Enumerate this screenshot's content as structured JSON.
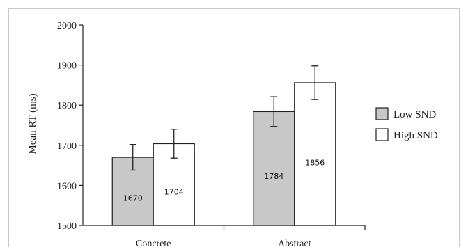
{
  "chart_data": {
    "type": "bar",
    "categories": [
      "Concrete",
      "Abstract"
    ],
    "series": [
      {
        "name": "Low SND",
        "values": [
          1670,
          1784
        ],
        "errors": [
          32,
          37
        ],
        "color": "#c8c8c8"
      },
      {
        "name": "High SND",
        "values": [
          1704,
          1856
        ],
        "errors": [
          36,
          42
        ],
        "color": "#ffffff"
      }
    ],
    "data_labels": [
      [
        "1670",
        "1784"
      ],
      [
        "1704",
        "1856"
      ]
    ],
    "ylabel": "Mean RT (ms)",
    "xlabel": "",
    "ylim": [
      1500,
      2000
    ],
    "yticks": [
      1500,
      1600,
      1700,
      1800,
      1900,
      2000
    ],
    "ytick_labels": [
      "1500",
      "1600",
      "1700",
      "1800",
      "1900",
      "2000"
    ],
    "grid": false,
    "legend_position": "right"
  }
}
